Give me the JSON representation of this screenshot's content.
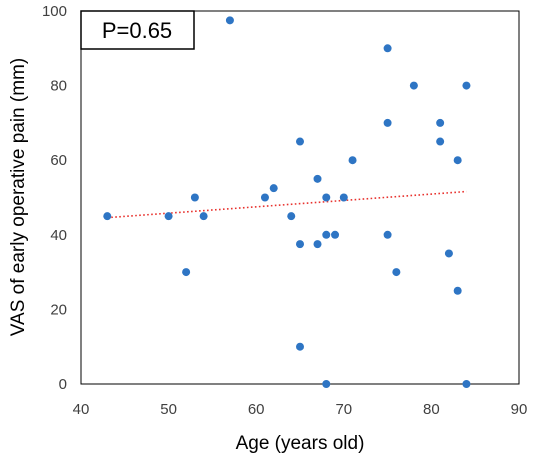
{
  "chart_data": {
    "type": "scatter",
    "title": "",
    "xlabel": "Age (years old)",
    "ylabel": "VAS of early operative pain (mm)",
    "xlim": [
      40,
      90
    ],
    "ylim": [
      0,
      100
    ],
    "xticks": [
      40,
      50,
      60,
      70,
      80,
      90
    ],
    "yticks": [
      0,
      20,
      40,
      60,
      80,
      100
    ],
    "grid": false,
    "annotation": "P=0.65",
    "series": [
      {
        "color": "#2e75c4",
        "points": [
          {
            "x": 43,
            "y": 45
          },
          {
            "x": 50,
            "y": 45
          },
          {
            "x": 52,
            "y": 30
          },
          {
            "x": 53,
            "y": 50
          },
          {
            "x": 54,
            "y": 45
          },
          {
            "x": 57,
            "y": 97.5
          },
          {
            "x": 61,
            "y": 50
          },
          {
            "x": 62,
            "y": 52.5
          },
          {
            "x": 64,
            "y": 45
          },
          {
            "x": 65,
            "y": 65
          },
          {
            "x": 65,
            "y": 37.5
          },
          {
            "x": 65,
            "y": 10
          },
          {
            "x": 67,
            "y": 55
          },
          {
            "x": 67,
            "y": 37.5
          },
          {
            "x": 68,
            "y": 50
          },
          {
            "x": 68,
            "y": 40
          },
          {
            "x": 68,
            "y": 0
          },
          {
            "x": 69,
            "y": 40
          },
          {
            "x": 70,
            "y": 50
          },
          {
            "x": 71,
            "y": 60
          },
          {
            "x": 75,
            "y": 90
          },
          {
            "x": 75,
            "y": 70
          },
          {
            "x": 75,
            "y": 40
          },
          {
            "x": 76,
            "y": 30
          },
          {
            "x": 78,
            "y": 80
          },
          {
            "x": 81,
            "y": 70
          },
          {
            "x": 81,
            "y": 65
          },
          {
            "x": 82,
            "y": 35
          },
          {
            "x": 83,
            "y": 60
          },
          {
            "x": 83,
            "y": 25
          },
          {
            "x": 84,
            "y": 80
          },
          {
            "x": 84,
            "y": 0
          }
        ]
      }
    ],
    "trendline": {
      "type": "linear",
      "style": "dotted",
      "color": "#e8322e",
      "x_range": [
        43,
        84
      ],
      "y_at_ends": [
        44.6,
        51.6
      ]
    }
  }
}
